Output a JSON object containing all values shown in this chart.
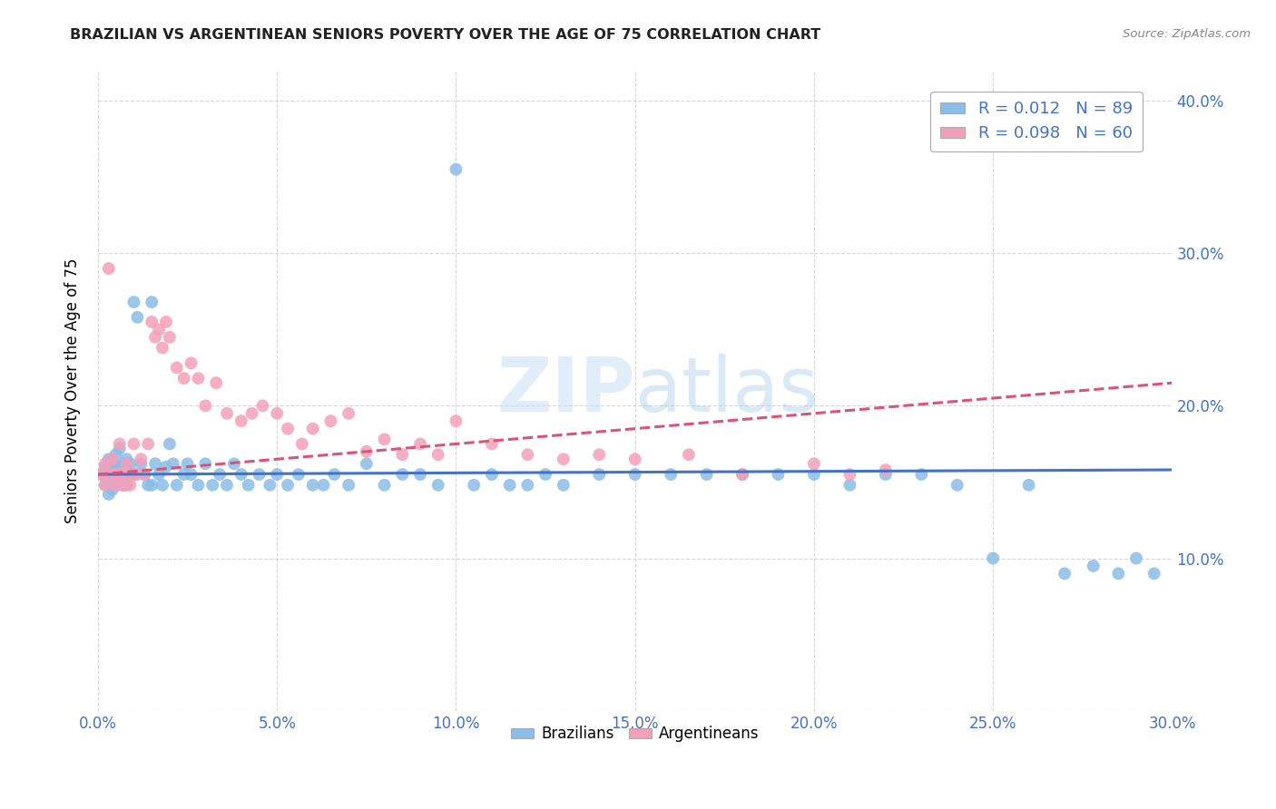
{
  "title": "BRAZILIAN VS ARGENTINEAN SENIORS POVERTY OVER THE AGE OF 75 CORRELATION CHART",
  "source": "Source: ZipAtlas.com",
  "ylabel": "Seniors Poverty Over the Age of 75",
  "xlim": [
    0.0,
    0.3
  ],
  "ylim": [
    0.0,
    0.42
  ],
  "xticks": [
    0.0,
    0.05,
    0.1,
    0.15,
    0.2,
    0.25,
    0.3
  ],
  "yticks": [
    0.0,
    0.1,
    0.2,
    0.3,
    0.4
  ],
  "legend_r1": "0.012",
  "legend_n1": "89",
  "legend_r2": "0.098",
  "legend_n2": "60",
  "color_brazilian": "#8bbde8",
  "color_argentinean": "#f4a0b8",
  "color_trend_brazilian": "#4472c4",
  "color_trend_argentinean": "#d9547a",
  "watermark_color": "#b8d4f0",
  "background_color": "#ffffff",
  "grid_color": "#cccccc",
  "axis_label_color": "#4472c4",
  "title_color": "#222222",
  "brazilians_x": [
    0.001,
    0.002,
    0.002,
    0.003,
    0.003,
    0.003,
    0.004,
    0.004,
    0.004,
    0.004,
    0.005,
    0.005,
    0.005,
    0.006,
    0.006,
    0.006,
    0.007,
    0.007,
    0.007,
    0.008,
    0.008,
    0.008,
    0.009,
    0.009,
    0.01,
    0.01,
    0.011,
    0.012,
    0.013,
    0.014,
    0.015,
    0.015,
    0.016,
    0.017,
    0.018,
    0.019,
    0.02,
    0.021,
    0.022,
    0.024,
    0.025,
    0.026,
    0.028,
    0.03,
    0.032,
    0.034,
    0.036,
    0.038,
    0.04,
    0.042,
    0.045,
    0.048,
    0.05,
    0.053,
    0.056,
    0.06,
    0.063,
    0.066,
    0.07,
    0.075,
    0.08,
    0.085,
    0.09,
    0.095,
    0.1,
    0.105,
    0.11,
    0.115,
    0.12,
    0.125,
    0.13,
    0.14,
    0.15,
    0.16,
    0.17,
    0.18,
    0.19,
    0.2,
    0.21,
    0.22,
    0.23,
    0.24,
    0.25,
    0.26,
    0.27,
    0.278,
    0.285,
    0.29,
    0.295
  ],
  "brazilians_y": [
    0.155,
    0.16,
    0.148,
    0.142,
    0.158,
    0.165,
    0.15,
    0.158,
    0.145,
    0.162,
    0.155,
    0.148,
    0.168,
    0.152,
    0.16,
    0.172,
    0.155,
    0.162,
    0.148,
    0.158,
    0.165,
    0.148,
    0.155,
    0.162,
    0.268,
    0.155,
    0.258,
    0.162,
    0.155,
    0.148,
    0.268,
    0.148,
    0.162,
    0.155,
    0.148,
    0.16,
    0.175,
    0.162,
    0.148,
    0.155,
    0.162,
    0.155,
    0.148,
    0.162,
    0.148,
    0.155,
    0.148,
    0.162,
    0.155,
    0.148,
    0.155,
    0.148,
    0.155,
    0.148,
    0.155,
    0.148,
    0.148,
    0.155,
    0.148,
    0.162,
    0.148,
    0.155,
    0.155,
    0.148,
    0.355,
    0.148,
    0.155,
    0.148,
    0.148,
    0.155,
    0.148,
    0.155,
    0.155,
    0.155,
    0.155,
    0.155,
    0.155,
    0.155,
    0.148,
    0.155,
    0.155,
    0.148,
    0.1,
    0.148,
    0.09,
    0.095,
    0.09,
    0.1,
    0.09
  ],
  "argentineans_x": [
    0.001,
    0.002,
    0.002,
    0.003,
    0.003,
    0.004,
    0.004,
    0.005,
    0.005,
    0.006,
    0.006,
    0.007,
    0.007,
    0.008,
    0.008,
    0.009,
    0.01,
    0.01,
    0.011,
    0.012,
    0.013,
    0.014,
    0.015,
    0.016,
    0.017,
    0.018,
    0.019,
    0.02,
    0.022,
    0.024,
    0.026,
    0.028,
    0.03,
    0.033,
    0.036,
    0.04,
    0.043,
    0.046,
    0.05,
    0.053,
    0.057,
    0.06,
    0.065,
    0.07,
    0.075,
    0.08,
    0.085,
    0.09,
    0.095,
    0.1,
    0.11,
    0.12,
    0.13,
    0.14,
    0.15,
    0.165,
    0.18,
    0.2,
    0.21,
    0.22
  ],
  "argentineans_y": [
    0.155,
    0.148,
    0.162,
    0.29,
    0.155,
    0.155,
    0.165,
    0.148,
    0.155,
    0.155,
    0.175,
    0.148,
    0.155,
    0.155,
    0.162,
    0.148,
    0.155,
    0.175,
    0.155,
    0.165,
    0.155,
    0.175,
    0.255,
    0.245,
    0.25,
    0.238,
    0.255,
    0.245,
    0.225,
    0.218,
    0.228,
    0.218,
    0.2,
    0.215,
    0.195,
    0.19,
    0.195,
    0.2,
    0.195,
    0.185,
    0.175,
    0.185,
    0.19,
    0.195,
    0.17,
    0.178,
    0.168,
    0.175,
    0.168,
    0.19,
    0.175,
    0.168,
    0.165,
    0.168,
    0.165,
    0.168,
    0.155,
    0.162,
    0.155,
    0.158
  ],
  "trend_braz_start": 0.155,
  "trend_braz_end": 0.158,
  "trend_arg_start": 0.155,
  "trend_arg_end": 0.215
}
